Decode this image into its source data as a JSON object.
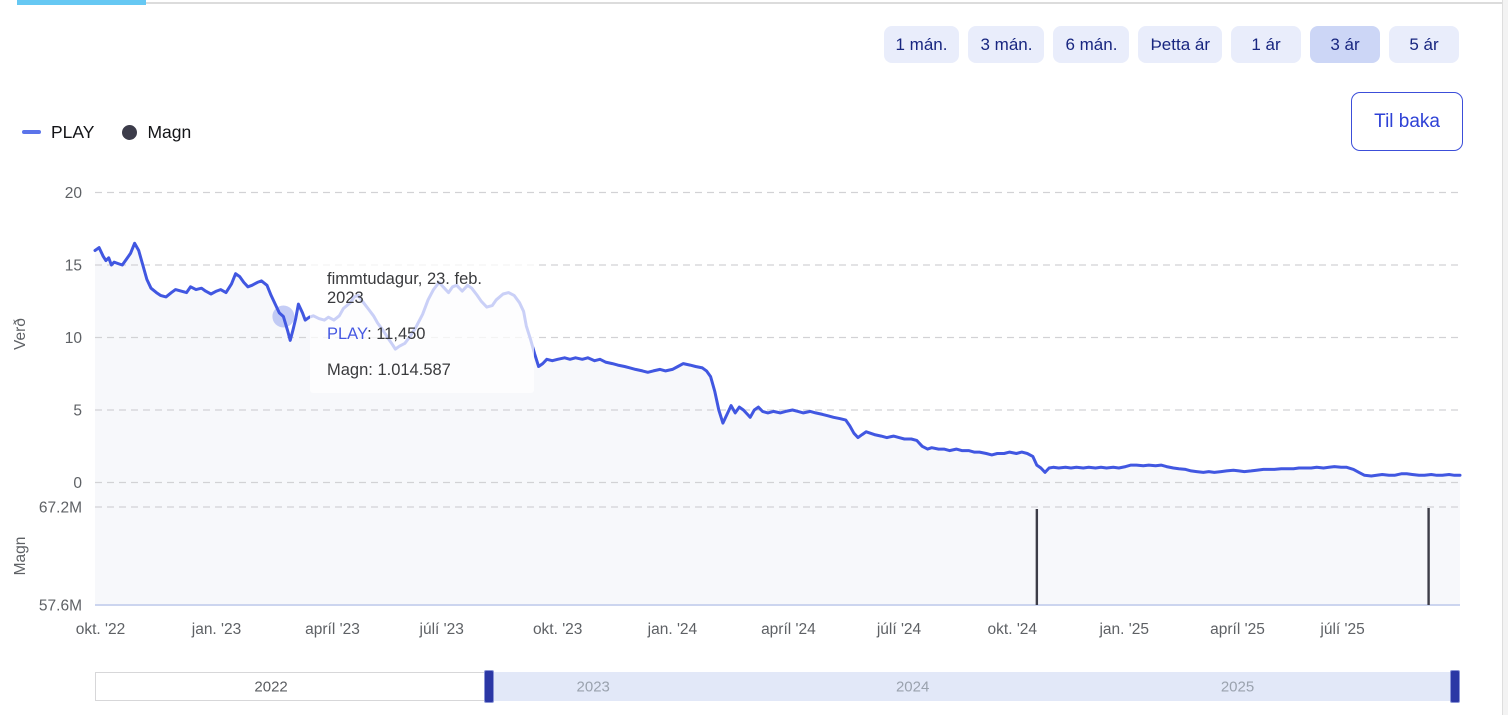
{
  "back_button": {
    "label": "Til baka"
  },
  "range_selector": {
    "buttons": [
      {
        "label": "1 mán.",
        "selected": false
      },
      {
        "label": "3 mán.",
        "selected": false
      },
      {
        "label": "6 mán.",
        "selected": false
      },
      {
        "label": "Þetta ár",
        "selected": false
      },
      {
        "label": "1 ár",
        "selected": false
      },
      {
        "label": "3 ár",
        "selected": true
      },
      {
        "label": "5 ár",
        "selected": false
      }
    ]
  },
  "legend": {
    "items": [
      {
        "label": "PLAY",
        "marker": "line",
        "color": "#5b74ea"
      },
      {
        "label": "Magn",
        "marker": "circle",
        "color": "#3c3c4a"
      }
    ]
  },
  "tooltip": {
    "date": "fimmtudagur, 23. feb. 2023",
    "price_label": "PLAY",
    "price_rest": ": 11,450",
    "volume_line": "Magn: 1.014.587"
  },
  "chart_data": {
    "type": "line",
    "title": "",
    "grid": "dashed-horizontal",
    "legend_position": "top-left",
    "price_axis": {
      "label": "Verð",
      "ticks": [
        0,
        5,
        10,
        15,
        20
      ],
      "range": [
        0,
        20.5
      ]
    },
    "volume_axis": {
      "label": "Magn",
      "ticks": [
        {
          "label": "67.2M",
          "value": 67.2
        },
        {
          "label": "57.6M",
          "value": 57.6
        }
      ]
    },
    "x_axis": {
      "ticks": [
        {
          "label": "okt. '22",
          "f": 0.004
        },
        {
          "label": "jan. '23",
          "f": 0.089
        },
        {
          "label": "apríl '23",
          "f": 0.174
        },
        {
          "label": "júlí '23",
          "f": 0.254
        },
        {
          "label": "okt. '23",
          "f": 0.339
        },
        {
          "label": "jan. '24",
          "f": 0.423
        },
        {
          "label": "apríl '24",
          "f": 0.508
        },
        {
          "label": "júlí '24",
          "f": 0.589
        },
        {
          "label": "okt. '24",
          "f": 0.672
        },
        {
          "label": "jan. '25",
          "f": 0.754
        },
        {
          "label": "apríl '25",
          "f": 0.837
        },
        {
          "label": "júlí '25",
          "f": 0.914
        }
      ]
    },
    "series": [
      {
        "name": "PLAY",
        "type": "line",
        "color": "#4157e1",
        "area_tint": "#f7f8fb",
        "points": [
          [
            0.0,
            16.0
          ],
          [
            0.003,
            16.2
          ],
          [
            0.006,
            15.6
          ],
          [
            0.008,
            15.3
          ],
          [
            0.01,
            15.5
          ],
          [
            0.012,
            15.0
          ],
          [
            0.014,
            15.2
          ],
          [
            0.017,
            15.1
          ],
          [
            0.02,
            15.0
          ],
          [
            0.023,
            15.4
          ],
          [
            0.026,
            15.8
          ],
          [
            0.029,
            16.5
          ],
          [
            0.032,
            16.0
          ],
          [
            0.035,
            15.0
          ],
          [
            0.038,
            14.0
          ],
          [
            0.041,
            13.4
          ],
          [
            0.045,
            13.1
          ],
          [
            0.048,
            12.9
          ],
          [
            0.052,
            12.8
          ],
          [
            0.056,
            13.1
          ],
          [
            0.059,
            13.3
          ],
          [
            0.063,
            13.2
          ],
          [
            0.067,
            13.1
          ],
          [
            0.07,
            13.5
          ],
          [
            0.074,
            13.3
          ],
          [
            0.078,
            13.4
          ],
          [
            0.081,
            13.2
          ],
          [
            0.085,
            13.0
          ],
          [
            0.089,
            13.2
          ],
          [
            0.092,
            13.3
          ],
          [
            0.096,
            13.1
          ],
          [
            0.1,
            13.7
          ],
          [
            0.103,
            14.4
          ],
          [
            0.106,
            14.2
          ],
          [
            0.109,
            13.8
          ],
          [
            0.112,
            13.5
          ],
          [
            0.115,
            13.6
          ],
          [
            0.119,
            13.8
          ],
          [
            0.122,
            13.9
          ],
          [
            0.126,
            13.6
          ],
          [
            0.129,
            12.9
          ],
          [
            0.132,
            12.3
          ],
          [
            0.135,
            11.7
          ],
          [
            0.138,
            11.45
          ],
          [
            0.141,
            10.5
          ],
          [
            0.143,
            9.8
          ],
          [
            0.145,
            10.5
          ],
          [
            0.147,
            11.3
          ],
          [
            0.149,
            12.3
          ],
          [
            0.152,
            11.7
          ],
          [
            0.154,
            11.2
          ],
          [
            0.157,
            11.4
          ],
          [
            0.16,
            11.5
          ],
          [
            0.164,
            11.3
          ],
          [
            0.168,
            11.2
          ],
          [
            0.171,
            11.4
          ],
          [
            0.175,
            11.2
          ],
          [
            0.179,
            11.5
          ],
          [
            0.182,
            12.0
          ],
          [
            0.187,
            12.4
          ],
          [
            0.19,
            12.8
          ],
          [
            0.193,
            12.9
          ],
          [
            0.196,
            12.5
          ],
          [
            0.2,
            12.0
          ],
          [
            0.204,
            11.5
          ],
          [
            0.207,
            11.0
          ],
          [
            0.211,
            10.5
          ],
          [
            0.215,
            9.9
          ],
          [
            0.218,
            9.5
          ],
          [
            0.22,
            9.2
          ],
          [
            0.223,
            9.4
          ],
          [
            0.227,
            9.6
          ],
          [
            0.231,
            10.1
          ],
          [
            0.235,
            10.7
          ],
          [
            0.24,
            11.6
          ],
          [
            0.244,
            12.6
          ],
          [
            0.248,
            13.3
          ],
          [
            0.252,
            13.8
          ],
          [
            0.256,
            13.4
          ],
          [
            0.259,
            13.1
          ],
          [
            0.262,
            13.5
          ],
          [
            0.265,
            13.6
          ],
          [
            0.269,
            13.2
          ],
          [
            0.273,
            13.6
          ],
          [
            0.276,
            13.4
          ],
          [
            0.28,
            12.9
          ],
          [
            0.283,
            12.5
          ],
          [
            0.287,
            12.1
          ],
          [
            0.291,
            12.2
          ],
          [
            0.294,
            12.6
          ],
          [
            0.299,
            13.0
          ],
          [
            0.303,
            13.1
          ],
          [
            0.307,
            12.9
          ],
          [
            0.311,
            12.4
          ],
          [
            0.314,
            11.8
          ],
          [
            0.316,
            10.8
          ],
          [
            0.319,
            9.9
          ],
          [
            0.322,
            8.9
          ],
          [
            0.325,
            8.0
          ],
          [
            0.328,
            8.2
          ],
          [
            0.331,
            8.5
          ],
          [
            0.335,
            8.4
          ],
          [
            0.339,
            8.5
          ],
          [
            0.344,
            8.6
          ],
          [
            0.348,
            8.5
          ],
          [
            0.352,
            8.6
          ],
          [
            0.357,
            8.5
          ],
          [
            0.361,
            8.6
          ],
          [
            0.366,
            8.4
          ],
          [
            0.37,
            8.5
          ],
          [
            0.374,
            8.3
          ],
          [
            0.379,
            8.2
          ],
          [
            0.383,
            8.1
          ],
          [
            0.388,
            8.0
          ],
          [
            0.392,
            7.9
          ],
          [
            0.396,
            7.8
          ],
          [
            0.401,
            7.7
          ],
          [
            0.405,
            7.6
          ],
          [
            0.409,
            7.7
          ],
          [
            0.414,
            7.8
          ],
          [
            0.418,
            7.7
          ],
          [
            0.423,
            7.8
          ],
          [
            0.427,
            8.0
          ],
          [
            0.431,
            8.2
          ],
          [
            0.436,
            8.1
          ],
          [
            0.44,
            8.0
          ],
          [
            0.445,
            7.9
          ],
          [
            0.448,
            7.7
          ],
          [
            0.451,
            7.3
          ],
          [
            0.454,
            6.3
          ],
          [
            0.457,
            5.0
          ],
          [
            0.46,
            4.1
          ],
          [
            0.463,
            4.7
          ],
          [
            0.466,
            5.3
          ],
          [
            0.469,
            4.8
          ],
          [
            0.472,
            5.2
          ],
          [
            0.475,
            5.0
          ],
          [
            0.478,
            4.7
          ],
          [
            0.48,
            4.5
          ],
          [
            0.483,
            5.0
          ],
          [
            0.486,
            5.2
          ],
          [
            0.489,
            4.9
          ],
          [
            0.493,
            4.8
          ],
          [
            0.497,
            4.9
          ],
          [
            0.502,
            4.8
          ],
          [
            0.506,
            4.9
          ],
          [
            0.511,
            5.0
          ],
          [
            0.515,
            4.9
          ],
          [
            0.519,
            4.8
          ],
          [
            0.524,
            4.9
          ],
          [
            0.528,
            4.8
          ],
          [
            0.533,
            4.7
          ],
          [
            0.537,
            4.6
          ],
          [
            0.541,
            4.5
          ],
          [
            0.546,
            4.4
          ],
          [
            0.55,
            4.3
          ],
          [
            0.553,
            3.9
          ],
          [
            0.556,
            3.4
          ],
          [
            0.559,
            3.1
          ],
          [
            0.562,
            3.3
          ],
          [
            0.565,
            3.5
          ],
          [
            0.568,
            3.4
          ],
          [
            0.571,
            3.3
          ],
          [
            0.576,
            3.2
          ],
          [
            0.58,
            3.1
          ],
          [
            0.585,
            3.2
          ],
          [
            0.589,
            3.1
          ],
          [
            0.593,
            3.0
          ],
          [
            0.598,
            3.0
          ],
          [
            0.602,
            2.9
          ],
          [
            0.606,
            2.5
          ],
          [
            0.61,
            2.3
          ],
          [
            0.613,
            2.4
          ],
          [
            0.618,
            2.3
          ],
          [
            0.622,
            2.3
          ],
          [
            0.626,
            2.2
          ],
          [
            0.631,
            2.3
          ],
          [
            0.635,
            2.2
          ],
          [
            0.64,
            2.2
          ],
          [
            0.644,
            2.1
          ],
          [
            0.648,
            2.1
          ],
          [
            0.653,
            2.0
          ],
          [
            0.657,
            1.9
          ],
          [
            0.661,
            2.0
          ],
          [
            0.666,
            2.0
          ],
          [
            0.67,
            2.1
          ],
          [
            0.675,
            2.0
          ],
          [
            0.679,
            2.1
          ],
          [
            0.683,
            2.0
          ],
          [
            0.687,
            1.8
          ],
          [
            0.69,
            1.2
          ],
          [
            0.693,
            1.0
          ],
          [
            0.696,
            0.7
          ],
          [
            0.699,
            1.0
          ],
          [
            0.702,
            1.05
          ],
          [
            0.706,
            1.0
          ],
          [
            0.711,
            1.05
          ],
          [
            0.715,
            1.0
          ],
          [
            0.719,
            1.05
          ],
          [
            0.724,
            1.0
          ],
          [
            0.728,
            1.05
          ],
          [
            0.733,
            1.0
          ],
          [
            0.737,
            1.05
          ],
          [
            0.741,
            1.0
          ],
          [
            0.746,
            1.05
          ],
          [
            0.75,
            1.0
          ],
          [
            0.755,
            1.1
          ],
          [
            0.759,
            1.2
          ],
          [
            0.763,
            1.2
          ],
          [
            0.768,
            1.15
          ],
          [
            0.772,
            1.2
          ],
          [
            0.777,
            1.15
          ],
          [
            0.781,
            1.2
          ],
          [
            0.785,
            1.1
          ],
          [
            0.79,
            1.0
          ],
          [
            0.794,
            0.95
          ],
          [
            0.799,
            0.9
          ],
          [
            0.803,
            0.8
          ],
          [
            0.807,
            0.75
          ],
          [
            0.812,
            0.7
          ],
          [
            0.816,
            0.75
          ],
          [
            0.82,
            0.7
          ],
          [
            0.825,
            0.75
          ],
          [
            0.829,
            0.8
          ],
          [
            0.834,
            0.85
          ],
          [
            0.838,
            0.8
          ],
          [
            0.842,
            0.75
          ],
          [
            0.847,
            0.8
          ],
          [
            0.851,
            0.85
          ],
          [
            0.856,
            0.9
          ],
          [
            0.86,
            0.9
          ],
          [
            0.864,
            0.9
          ],
          [
            0.869,
            0.95
          ],
          [
            0.873,
            0.95
          ],
          [
            0.878,
            0.95
          ],
          [
            0.882,
            1.0
          ],
          [
            0.886,
            1.0
          ],
          [
            0.891,
            1.0
          ],
          [
            0.895,
            1.05
          ],
          [
            0.9,
            1.0
          ],
          [
            0.904,
            1.05
          ],
          [
            0.908,
            1.1
          ],
          [
            0.913,
            1.05
          ],
          [
            0.917,
            1.05
          ],
          [
            0.922,
            0.9
          ],
          [
            0.926,
            0.7
          ],
          [
            0.93,
            0.5
          ],
          [
            0.935,
            0.45
          ],
          [
            0.939,
            0.5
          ],
          [
            0.943,
            0.55
          ],
          [
            0.948,
            0.5
          ],
          [
            0.952,
            0.5
          ],
          [
            0.957,
            0.6
          ],
          [
            0.961,
            0.6
          ],
          [
            0.965,
            0.55
          ],
          [
            0.97,
            0.5
          ],
          [
            0.974,
            0.5
          ],
          [
            0.979,
            0.55
          ],
          [
            0.983,
            0.5
          ],
          [
            0.987,
            0.5
          ],
          [
            0.992,
            0.55
          ],
          [
            0.996,
            0.5
          ],
          [
            1.0,
            0.5
          ]
        ]
      },
      {
        "name": "Magn",
        "type": "column",
        "color": "#3d3d48",
        "points": [
          [
            0.69,
            67.0
          ],
          [
            0.977,
            67.1
          ]
        ]
      }
    ],
    "hover_point": {
      "f": 0.138,
      "value": 11.45,
      "price_display": "11,450",
      "volume_display": "1.014.587"
    },
    "navigator": {
      "selection_start_f": 0.2886,
      "selection_end_f": 0.9963,
      "years": [
        {
          "label": "2022",
          "f": 0.129,
          "dimmed": false
        },
        {
          "label": "2023",
          "f": 0.365,
          "dimmed": true
        },
        {
          "label": "2024",
          "f": 0.599,
          "dimmed": true
        },
        {
          "label": "2025",
          "f": 0.837,
          "dimmed": true
        }
      ]
    }
  }
}
